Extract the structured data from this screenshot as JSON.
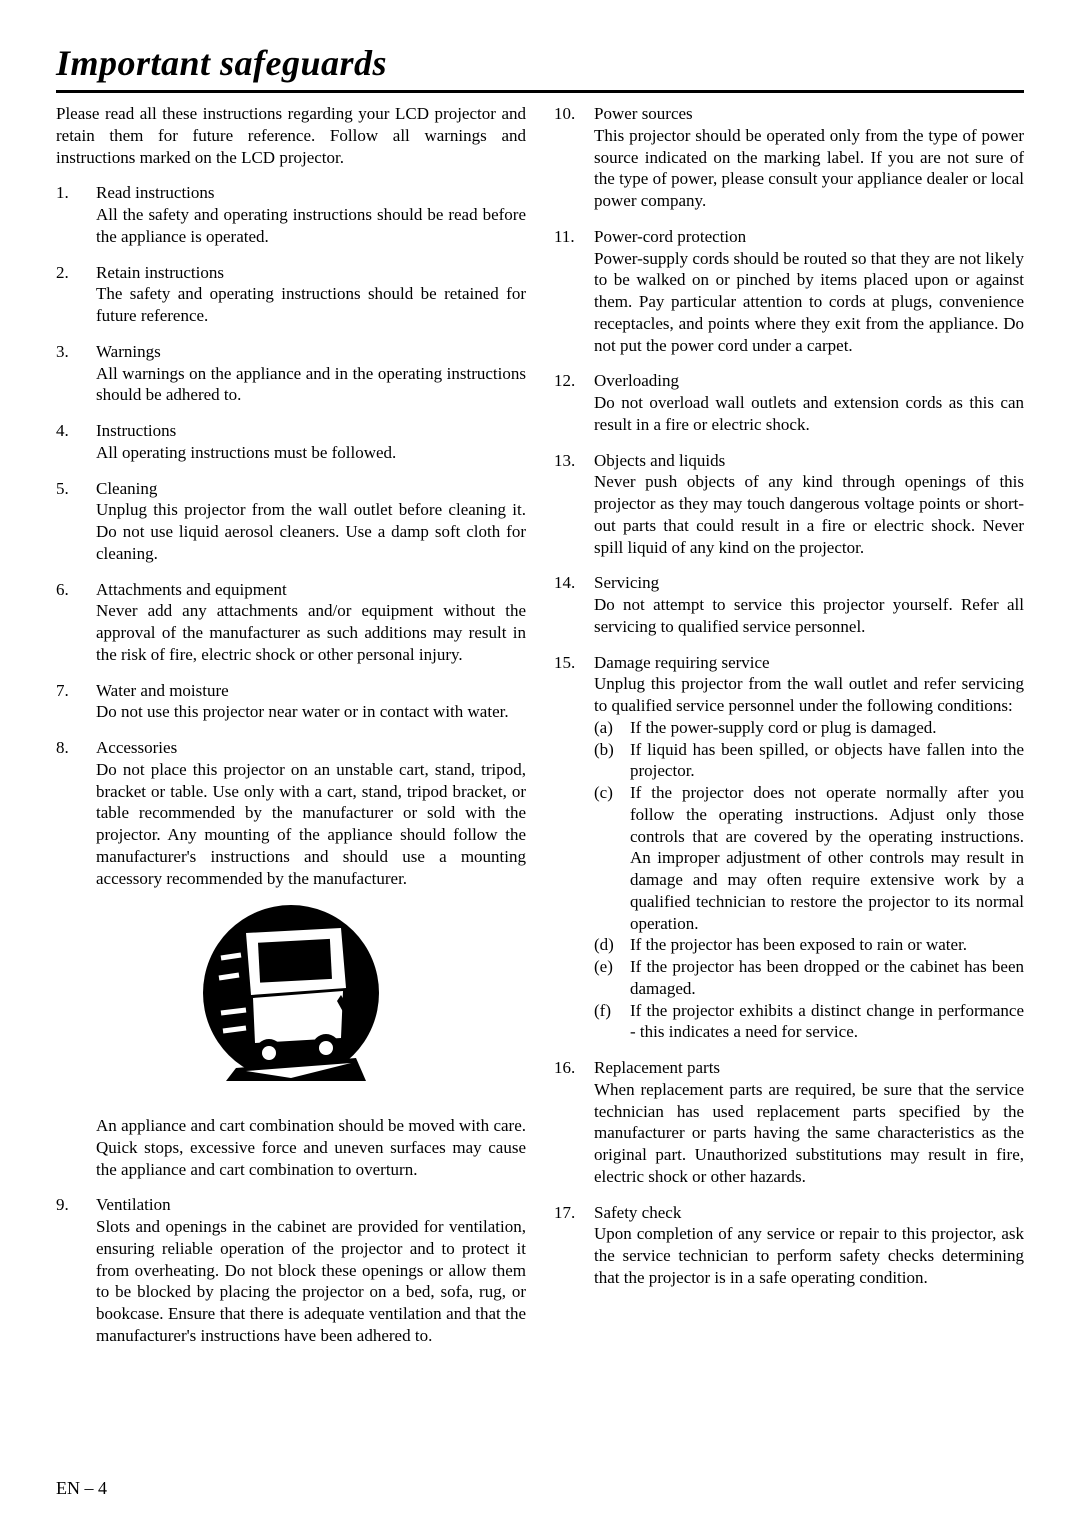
{
  "title": "Important safeguards",
  "intro": "Please read all these instructions regarding your LCD projector and retain them for future reference. Follow all warnings and instructions marked on the LCD projector.",
  "left": [
    {
      "n": "1.",
      "h": "Read instructions",
      "t": "All the safety and operating instructions should be read before the appliance is operated."
    },
    {
      "n": "2.",
      "h": "Retain instructions",
      "t": "The safety and operating instructions should be retained for future reference."
    },
    {
      "n": "3.",
      "h": "Warnings",
      "t": "All warnings on the appliance and in the operating instructions should be adhered to."
    },
    {
      "n": "4.",
      "h": "Instructions",
      "t": "All operating instructions must be followed."
    },
    {
      "n": "5.",
      "h": "Cleaning",
      "t": "Unplug this projector from the wall outlet before cleaning it. Do not use liquid aerosol cleaners. Use a damp soft cloth for cleaning."
    },
    {
      "n": "6.",
      "h": "Attachments and equipment",
      "t": "Never add any attachments and/or equipment without the approval of the manufacturer as such additions may result in the risk of fire, electric shock or other personal injury."
    },
    {
      "n": "7.",
      "h": "Water and moisture",
      "t": "Do not use this projector near water or in contact with water."
    },
    {
      "n": "8.",
      "h": "Accessories",
      "t": "Do not place this projector on an unstable cart, stand, tripod, bracket or table. Use only with a cart, stand, tripod bracket, or table recommended by the manufacturer or sold with the projector. Any mounting of the appliance should follow the manufacturer's instructions and should use a mounting accessory recommended by the manufacturer."
    }
  ],
  "left_after": "An appliance and cart combination should be moved with care. Quick stops, excessive force and uneven surfaces may cause the appliance and cart combination to overturn.",
  "left9": {
    "n": "9.",
    "h": "Ventilation",
    "t": "Slots and openings in the cabinet are provided for ventilation, ensuring reliable operation of the projector and to protect it from overheating. Do not block these openings or allow them to be blocked by placing the projector on a bed, sofa, rug, or bookcase. Ensure that there is adequate ventilation and that the manufacturer's instructions have been adhered to."
  },
  "right": [
    {
      "n": "10.",
      "h": "Power sources",
      "t": "This projector should be operated only from the type of power source indicated on the marking label. If you are not sure of the type of power, please consult your appliance dealer or local power company."
    },
    {
      "n": "11.",
      "h": "Power-cord protection",
      "t": "Power-supply cords should be routed so that they are not likely to be walked on or pinched by items placed upon or against them. Pay particular attention to cords at plugs, convenience receptacles, and points where they exit from the appliance. Do not put the power cord under a carpet."
    },
    {
      "n": "12.",
      "h": "Overloading",
      "t": "Do not overload wall outlets and extension cords as this can result in a fire or electric shock."
    },
    {
      "n": "13.",
      "h": "Objects and liquids",
      "t": "Never push objects of any kind through openings of this projector as they may touch dangerous voltage points or short-out parts that could result in a fire or electric shock. Never spill liquid of any kind on the projector."
    },
    {
      "n": "14.",
      "h": "Servicing",
      "t": "Do not attempt to service this projector yourself. Refer all servicing to qualified service personnel."
    }
  ],
  "item15": {
    "n": "15.",
    "h": "Damage requiring service",
    "t": "Unplug this projector from the wall outlet and refer servicing to qualified service personnel under the following conditions:"
  },
  "subs15": [
    {
      "l": "(a)",
      "t": "If the power-supply cord or plug is damaged."
    },
    {
      "l": "(b)",
      "t": "If liquid has been spilled, or objects have fallen into the projector."
    },
    {
      "l": "(c)",
      "t": "If the projector does not operate normally after you follow the operating instructions. Adjust only those controls that are covered by the operating instructions. An improper adjustment of other controls may result in damage and may often require extensive work by a qualified technician to restore the projector to its normal operation."
    },
    {
      "l": "(d)",
      "t": "If the projector has been exposed to rain or water."
    },
    {
      "l": "(e)",
      "t": "If the projector has been dropped or the cabinet has been damaged."
    },
    {
      "l": "(f)",
      "t": "If the projector exhibits a distinct change in performance - this indicates a need for service."
    }
  ],
  "right2": [
    {
      "n": "16.",
      "h": "Replacement parts",
      "t": "When replacement parts are required, be sure that the service technician has used replacement parts specified by the manufacturer or parts having the same characteristics as the original part. Unauthorized substitutions may result in fire, electric shock or other hazards."
    },
    {
      "n": "17.",
      "h": "Safety check",
      "t": "Upon completion of any service or repair to this projector, ask the service technician to perform safety checks determining that the projector is in a safe operating condition."
    }
  ],
  "footer": "EN – 4"
}
